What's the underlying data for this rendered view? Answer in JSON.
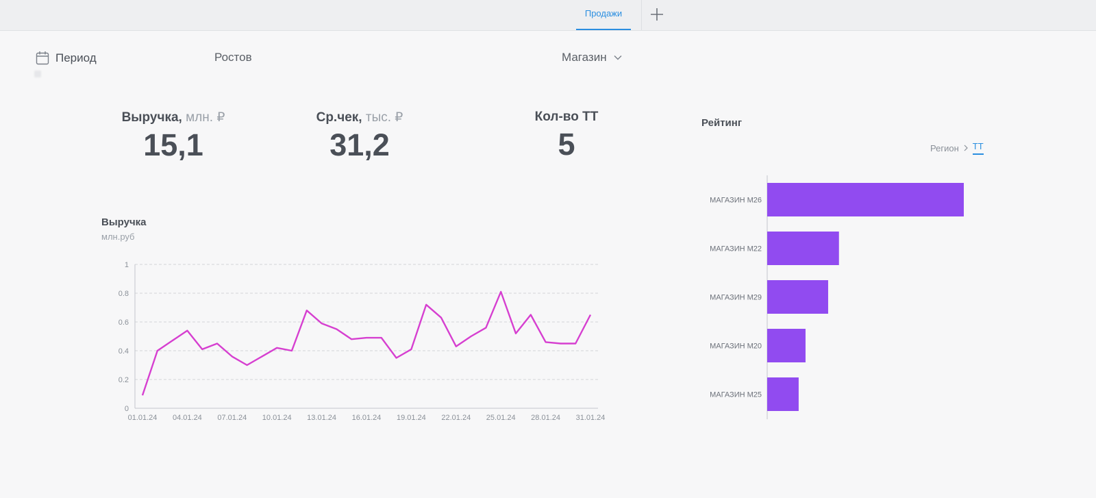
{
  "tabs": [
    {
      "label": "Продажи",
      "active": true
    }
  ],
  "filters": {
    "period_label": "Период",
    "city": "Ростов",
    "store_label": "Магазин"
  },
  "kpis": [
    {
      "title": "Выручка,",
      "unit": "млн. ₽",
      "value": "15,1"
    },
    {
      "title": "Ср.чек,",
      "unit": "тыс. ₽",
      "value": "31,2"
    },
    {
      "title": "Кол-во ТТ",
      "unit": "",
      "value": "5"
    }
  ],
  "revenue_chart": {
    "title": "Выручка",
    "subtitle": "млн.руб"
  },
  "rating": {
    "title": "Рейтинг",
    "crumbs": {
      "region": "Регион",
      "tt": "ТТ"
    }
  },
  "colors": {
    "accent": "#2a8ee0",
    "line": "#d63fd0",
    "bar": "#914bf0",
    "grid": "#d3d5d9",
    "text": "#4a4f57",
    "muted": "#8a9098"
  },
  "chart_data": [
    {
      "type": "line",
      "title": "Выручка",
      "ylabel": "млн.руб",
      "ylim": [
        0,
        1
      ],
      "yticks": [
        "0",
        "0.2",
        "0.4",
        "0.6",
        "0.8",
        "1"
      ],
      "xtick_labels": [
        "01.01.24",
        "04.01.24",
        "07.01.24",
        "10.01.24",
        "13.01.24",
        "16.01.24",
        "19.01.24",
        "22.01.24",
        "25.01.24",
        "28.01.24",
        "31.01.24"
      ],
      "x": [
        "01.01.24",
        "02.01.24",
        "03.01.24",
        "04.01.24",
        "05.01.24",
        "06.01.24",
        "07.01.24",
        "08.01.24",
        "09.01.24",
        "10.01.24",
        "11.01.24",
        "12.01.24",
        "13.01.24",
        "14.01.24",
        "15.01.24",
        "16.01.24",
        "17.01.24",
        "18.01.24",
        "19.01.24",
        "20.01.24",
        "21.01.24",
        "22.01.24",
        "23.01.24",
        "24.01.24",
        "25.01.24",
        "26.01.24",
        "27.01.24",
        "28.01.24",
        "29.01.24",
        "30.01.24",
        "31.01.24"
      ],
      "series": [
        {
          "values": [
            0.09,
            0.4,
            0.47,
            0.54,
            0.41,
            0.45,
            0.36,
            0.3,
            0.36,
            0.42,
            0.4,
            0.68,
            0.59,
            0.55,
            0.48,
            0.49,
            0.49,
            0.35,
            0.41,
            0.72,
            0.63,
            0.43,
            0.5,
            0.56,
            0.81,
            0.52,
            0.65,
            0.46,
            0.45,
            0.45,
            0.65
          ]
        }
      ],
      "grid": true
    },
    {
      "type": "bar",
      "orientation": "horizontal",
      "title": "Рейтинг",
      "categories": [
        "МАГАЗИН М26",
        "МАГАЗИН М22",
        "МАГАЗИН М29",
        "МАГАЗИН М20",
        "МАГАЗИН М25"
      ],
      "values": [
        100,
        36.5,
        31,
        19.5,
        16
      ],
      "grid": false
    }
  ]
}
